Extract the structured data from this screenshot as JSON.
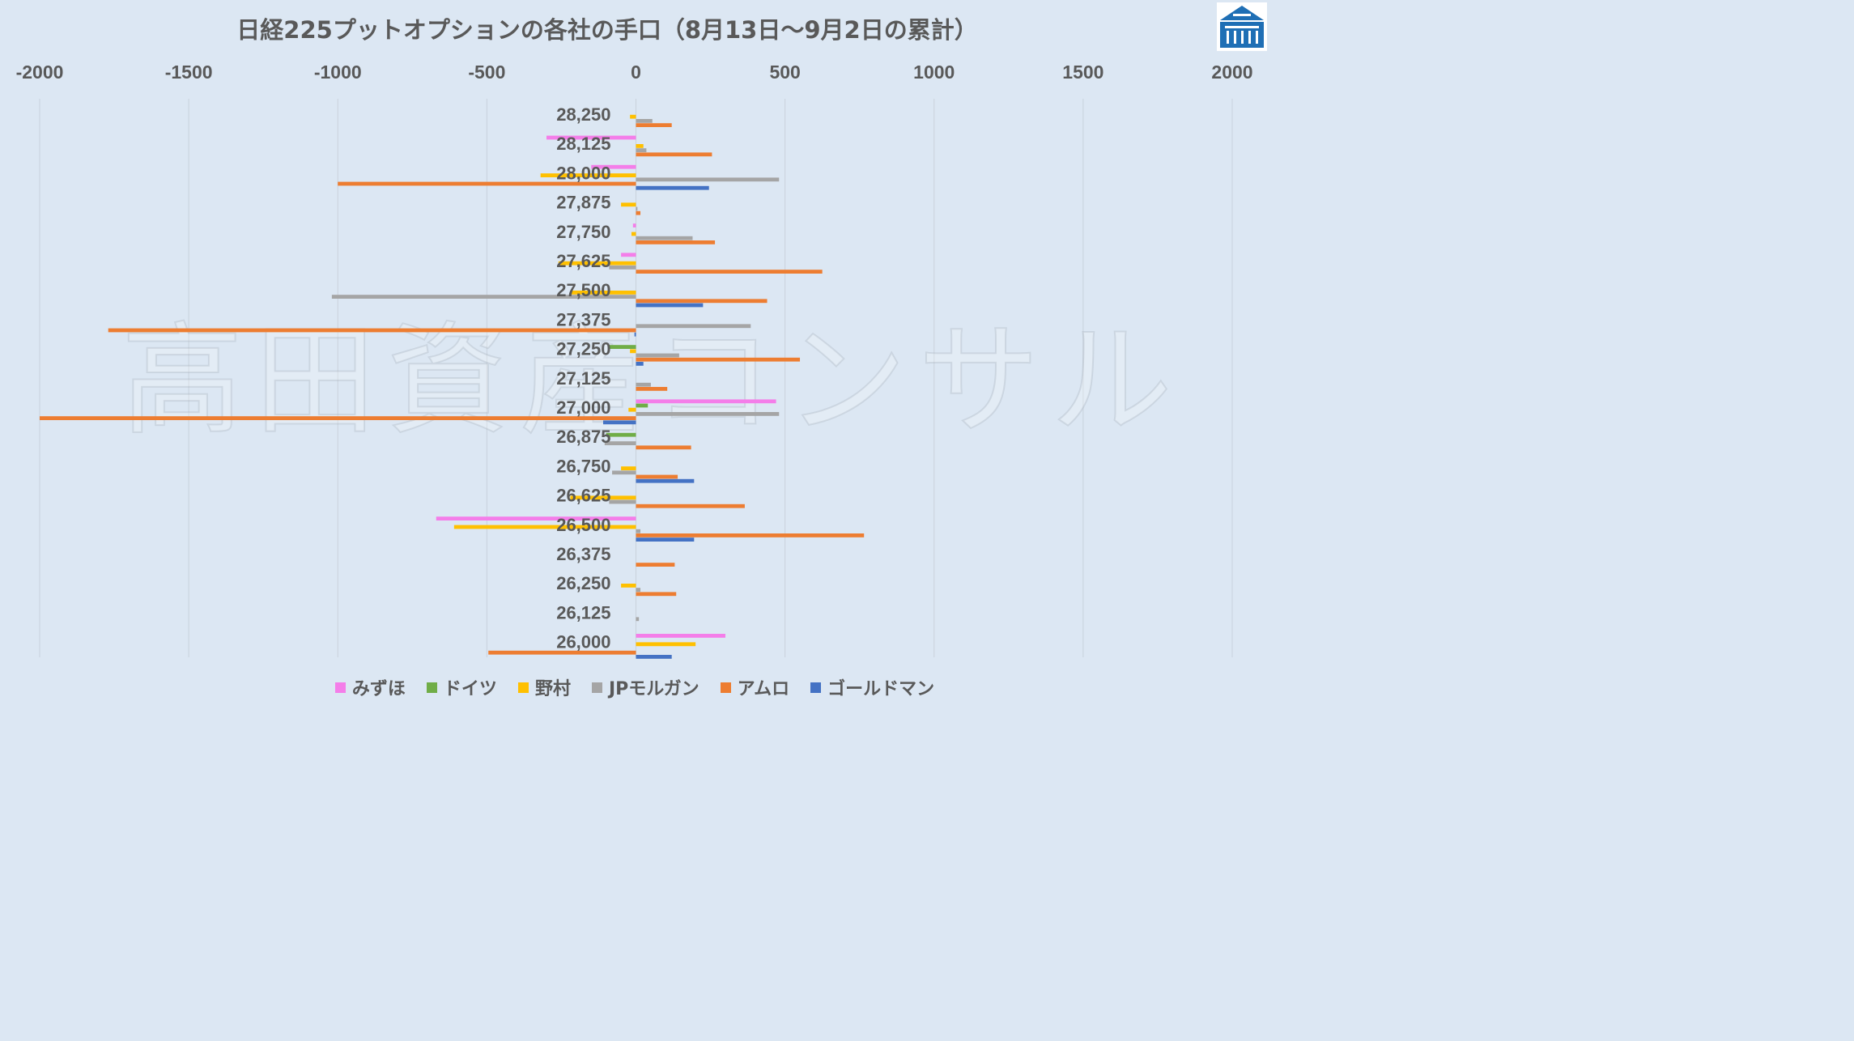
{
  "chart_data": {
    "type": "bar",
    "orientation": "horizontal",
    "title": "日経225プットオプションの各社の手口（8月13日〜9月2日の累計）",
    "xlim": [
      -2000,
      2000
    ],
    "x_ticks": [
      "-2000",
      "-1500",
      "-1000",
      "-500",
      "0",
      "500",
      "1000",
      "1500",
      "2000"
    ],
    "x_tick_values": [
      -2000,
      -1500,
      -1000,
      -500,
      0,
      500,
      1000,
      1500,
      2000
    ],
    "grid": true,
    "legend_position": "bottom",
    "categories": [
      "28,250",
      "28,125",
      "28,000",
      "27,875",
      "27,750",
      "27,625",
      "27,500",
      "27,375",
      "27,250",
      "27,125",
      "27,000",
      "26,875",
      "26,750",
      "26,625",
      "26,500",
      "26,375",
      "26,250",
      "26,125",
      "26,000"
    ],
    "series": [
      {
        "name": "みずほ",
        "color": "#f47ee9",
        "values": [
          0,
          -300,
          -150,
          0,
          -10,
          -50,
          0,
          0,
          0,
          0,
          470,
          0,
          0,
          0,
          -670,
          0,
          0,
          0,
          300
        ]
      },
      {
        "name": "ドイツ",
        "color": "#70ad47",
        "values": [
          0,
          0,
          0,
          0,
          0,
          0,
          0,
          0,
          -90,
          0,
          40,
          -100,
          0,
          0,
          0,
          0,
          0,
          0,
          0
        ]
      },
      {
        "name": "野村",
        "color": "#ffc000",
        "values": [
          -20,
          25,
          -320,
          -50,
          -15,
          -260,
          -220,
          0,
          -20,
          0,
          -25,
          0,
          -50,
          -220,
          -610,
          0,
          -50,
          0,
          200
        ]
      },
      {
        "name": "JPモルガン",
        "color": "#a5a5a5",
        "values": [
          55,
          35,
          480,
          5,
          190,
          -90,
          -1020,
          385,
          145,
          50,
          480,
          -105,
          -80,
          -90,
          15,
          0,
          15,
          10,
          0
        ]
      },
      {
        "name": "アムロ",
        "color": "#ed7d31",
        "values": [
          120,
          255,
          -1000,
          15,
          265,
          625,
          440,
          -1770,
          550,
          105,
          -2000,
          185,
          140,
          365,
          765,
          130,
          135,
          0,
          -495
        ]
      },
      {
        "name": "ゴールドマン",
        "color": "#4472c4",
        "values": [
          0,
          0,
          245,
          0,
          0,
          0,
          225,
          -5,
          25,
          0,
          -110,
          0,
          195,
          0,
          195,
          0,
          0,
          0,
          120
        ]
      }
    ]
  },
  "watermark": "高田資産コンサル",
  "logo": {
    "icon": "building-icon",
    "color": "#1f6fb5"
  }
}
